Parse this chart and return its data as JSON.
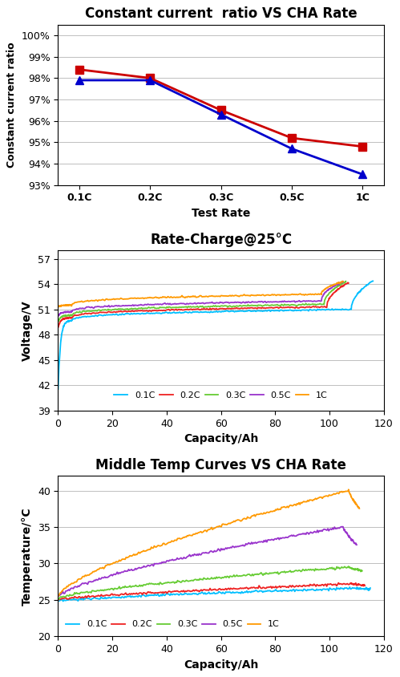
{
  "chart1": {
    "title": "Constant current  ratio VS CHA Rate",
    "xlabel": "Test Rate",
    "ylabel": "Constant current ratio",
    "xticks": [
      "0.1C",
      "0.2C",
      "0.3C",
      "0.5C",
      "1C"
    ],
    "ylim": [
      0.93,
      1.005
    ],
    "yticks": [
      0.93,
      0.94,
      0.95,
      0.96,
      0.97,
      0.98,
      0.99,
      1.0
    ],
    "series": [
      {
        "color": "#CC0000",
        "marker": "s",
        "values": [
          0.984,
          0.98,
          0.965,
          0.952,
          0.948
        ]
      },
      {
        "color": "#0000CC",
        "marker": "^",
        "values": [
          0.979,
          0.979,
          0.963,
          0.947,
          0.935
        ]
      }
    ]
  },
  "chart2": {
    "title": "Rate-Charge@25°C",
    "xlabel": "Capacity/Ah",
    "ylabel": "Voltage/V",
    "xlim": [
      0,
      120
    ],
    "ylim": [
      39,
      58
    ],
    "yticks": [
      39,
      42,
      45,
      48,
      51,
      54,
      57
    ],
    "xticks": [
      0,
      20,
      40,
      60,
      80,
      100,
      120
    ],
    "legend_labels": [
      "0.1C",
      "0.2C",
      "0.3C",
      "0.5C",
      "1C"
    ],
    "legend_colors": [
      "#00BFFF",
      "#EE2222",
      "#66CC33",
      "#9933CC",
      "#FF9900"
    ],
    "curve_params": [
      {
        "label": "0.1C",
        "color": "#00BFFF",
        "v0": 41.5,
        "v_mid": 50.2,
        "v_end": 54.4,
        "cap_end": 116
      },
      {
        "label": "0.2C",
        "color": "#EE2222",
        "v0": 48.8,
        "v_mid": 50.5,
        "v_end": 54.2,
        "cap_end": 107
      },
      {
        "label": "0.3C",
        "color": "#66CC33",
        "v0": 49.5,
        "v_mid": 50.8,
        "v_end": 54.3,
        "cap_end": 106
      },
      {
        "label": "0.5C",
        "color": "#9933CC",
        "v0": 50.2,
        "v_mid": 51.2,
        "v_end": 54.3,
        "cap_end": 105
      },
      {
        "label": "1C",
        "color": "#FF9900",
        "v0": 51.3,
        "v_mid": 52.0,
        "v_end": 54.3,
        "cap_end": 105
      }
    ]
  },
  "chart3": {
    "title": "Middle Temp Curves VS CHA Rate",
    "xlabel": "Capacity/Ah",
    "ylabel": "Temperature/°C",
    "xlim": [
      0,
      120
    ],
    "ylim": [
      20,
      42
    ],
    "yticks": [
      20,
      25,
      30,
      35,
      40
    ],
    "xticks": [
      0,
      20,
      40,
      60,
      80,
      100,
      120
    ],
    "legend_labels": [
      "0.1C",
      "0.2C",
      "0.3C",
      "0.5C",
      "1C"
    ],
    "legend_colors": [
      "#00BFFF",
      "#EE2222",
      "#66CC33",
      "#9933CC",
      "#FF9900"
    ],
    "curve_params": [
      {
        "label": "0.1C",
        "color": "#00BFFF",
        "t0": 24.8,
        "t_peak": 26.6,
        "cap_peak": 110,
        "t_end": 26.5,
        "cap_end": 115
      },
      {
        "label": "0.2C",
        "color": "#EE2222",
        "t0": 25.0,
        "t_peak": 27.2,
        "cap_peak": 108,
        "t_end": 27.0,
        "cap_end": 113
      },
      {
        "label": "0.3C",
        "color": "#66CC33",
        "t0": 25.2,
        "t_peak": 29.5,
        "cap_peak": 107,
        "t_end": 29.0,
        "cap_end": 112
      },
      {
        "label": "0.5C",
        "color": "#9933CC",
        "t0": 25.4,
        "t_peak": 35.0,
        "cap_peak": 105,
        "t_end": 32.5,
        "cap_end": 110
      },
      {
        "label": "1C",
        "color": "#FF9900",
        "t0": 25.5,
        "t_peak": 40.0,
        "cap_peak": 107,
        "t_end": 37.5,
        "cap_end": 111
      }
    ]
  },
  "bg_color": "#FFFFFF",
  "title_fontsize": 12,
  "label_fontsize": 10,
  "tick_fontsize": 9
}
